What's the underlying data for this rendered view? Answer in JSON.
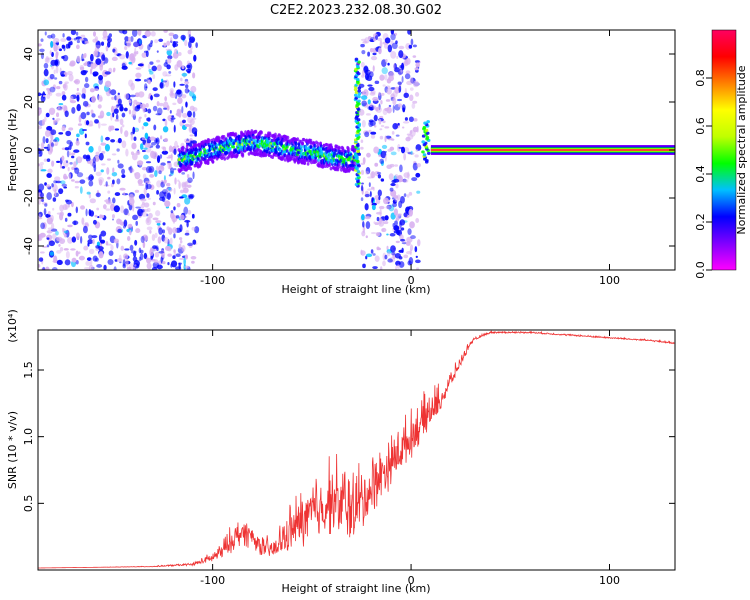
{
  "title": "C2E2.2023.232.08.30.G02",
  "chart_data": [
    {
      "type": "heatmap",
      "xlabel": "Height of straight line (km)",
      "ylabel": "Frequency (Hz)",
      "xlim": [
        -188,
        133
      ],
      "ylim": [
        -50,
        50
      ],
      "xticks": [
        -100,
        0,
        100
      ],
      "yticks": [
        -40,
        -20,
        0,
        20,
        40
      ],
      "colorbar": {
        "label": "Normalized spectral amplitude",
        "range": [
          0,
          1
        ],
        "ticks": [
          0.0,
          0.2,
          0.4,
          0.6,
          0.8
        ],
        "colormap": [
          "#ff00ff",
          "#8000ff",
          "#0000ff",
          "#00c0ff",
          "#00ff00",
          "#c0ff00",
          "#ffff00",
          "#ff8000",
          "#ff0000",
          "#ff0060"
        ]
      },
      "regions": [
        {
          "label": "noise",
          "x_range": [
            -188,
            -108
          ],
          "freq_range": [
            -50,
            50
          ],
          "amplitude": 0.15
        },
        {
          "label": "signal_wavy",
          "x_range": [
            -117,
            -28
          ],
          "center_freq_points": [
            [
              -117,
              -4
            ],
            [
              -110,
              -3
            ],
            [
              -100,
              0
            ],
            [
              -90,
              2
            ],
            [
              -80,
              3
            ],
            [
              -70,
              2
            ],
            [
              -60,
              0
            ],
            [
              -50,
              -1
            ],
            [
              -40,
              -3
            ],
            [
              -32,
              -4
            ],
            [
              -28,
              -3
            ]
          ],
          "amplitude": 0.35
        },
        {
          "label": "spike",
          "x_range": [
            -28,
            -26
          ],
          "freq_range": [
            -15,
            38
          ],
          "amplitude": 0.4
        },
        {
          "label": "noise",
          "x_range": [
            -25,
            4
          ],
          "freq_range": [
            -50,
            50
          ],
          "amplitude": 0.15
        },
        {
          "label": "spike",
          "x_range": [
            6,
            9
          ],
          "freq_range": [
            -5,
            12
          ],
          "amplitude": 0.45
        },
        {
          "label": "carrier",
          "x_range": [
            10,
            133
          ],
          "freq": 0,
          "amplitude": 1.0
        }
      ]
    },
    {
      "type": "line",
      "xlabel": "Height of straight line (km)",
      "ylabel": "SNR (10 * v/v)",
      "yscale_label": "(x10⁴)",
      "xlim": [
        -188,
        133
      ],
      "ylim": [
        0,
        18000
      ],
      "xticks": [
        -100,
        0,
        100
      ],
      "yticks": [
        5000,
        10000,
        15000
      ],
      "ytick_labels": [
        "0.5",
        "1.0",
        "1.5"
      ],
      "series": [
        {
          "color": "#ee3333",
          "x": [
            -188,
            -160,
            -130,
            -110,
            -100,
            -95,
            -90,
            -85,
            -80,
            -75,
            -70,
            -65,
            -60,
            -55,
            -50,
            -45,
            -40,
            -35,
            -30,
            -25,
            -20,
            -15,
            -10,
            -5,
            0,
            5,
            10,
            15,
            20,
            25,
            30,
            35,
            40,
            50,
            60,
            70,
            80,
            90,
            100,
            110,
            120,
            133
          ],
          "y": [
            150,
            200,
            250,
            400,
            800,
            1200,
            2000,
            2500,
            2200,
            1500,
            1200,
            1800,
            2500,
            3000,
            3500,
            4000,
            4500,
            4000,
            3800,
            4200,
            5500,
            6500,
            7500,
            8500,
            9500,
            10500,
            11500,
            12500,
            14000,
            15500,
            17000,
            17500,
            17800,
            17800,
            17800,
            17700,
            17600,
            17500,
            17400,
            17300,
            17200,
            17000
          ],
          "noise": [
            0,
            0,
            50,
            150,
            600,
            1200,
            1500,
            1800,
            1500,
            1200,
            1200,
            2000,
            2800,
            3500,
            4000,
            4200,
            4500,
            4500,
            4500,
            4000,
            3500,
            3200,
            3000,
            2800,
            2600,
            2500,
            2300,
            1600,
            1000,
            600,
            300,
            150,
            100,
            100,
            100,
            100,
            100,
            100,
            100,
            100,
            100,
            100
          ]
        }
      ]
    }
  ]
}
